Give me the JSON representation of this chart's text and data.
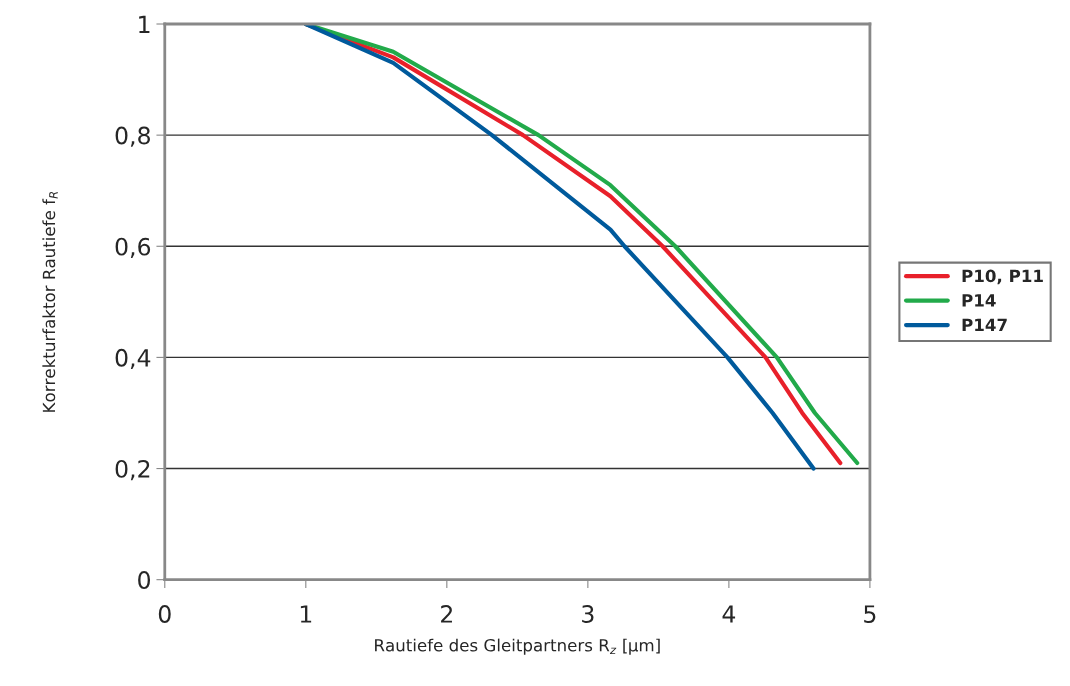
{
  "chart_data": {
    "type": "line",
    "xlabel": "Rautiefe des Gleitpartners R$_{z}$ [µm]",
    "ylabel": "Korrekturfaktor Rautiefe f$_{R}$",
    "series": [
      {
        "name": "P10, P11",
        "color": "#e8202a",
        "x": [
          1,
          1.62,
          2.54,
          3.16,
          3.53,
          4.26,
          4.52,
          4.79
        ],
        "values": [
          1,
          0.94,
          0.8,
          0.69,
          0.6,
          0.4,
          0.3,
          0.21
        ]
      },
      {
        "name": "P14",
        "color": "#22aa4a",
        "x": [
          1,
          1.62,
          2.65,
          3.16,
          3.62,
          4.34,
          4.61,
          4.91
        ],
        "values": [
          1,
          0.95,
          0.8,
          0.71,
          0.6,
          0.4,
          0.3,
          0.21
        ]
      },
      {
        "name": "P147",
        "color": "#005a9c",
        "x": [
          1,
          1.62,
          2.32,
          3.16,
          3.26,
          3.99,
          4.31,
          4.6
        ],
        "values": [
          1,
          0.93,
          0.8,
          0.63,
          0.6,
          0.4,
          0.3,
          0.2
        ]
      }
    ],
    "xlim": [
      0,
      5
    ],
    "xticks": [
      0,
      1,
      2,
      3,
      4,
      5
    ],
    "ylim": [
      0,
      1
    ],
    "yticks": [
      0,
      {
        "value": 0.2,
        "label": "0,2"
      },
      {
        "value": 0.4,
        "label": "0,4"
      },
      {
        "value": 0.6,
        "label": "0,6"
      },
      {
        "value": 0.8,
        "label": "0,8"
      },
      1
    ],
    "grid": "y",
    "legend": "right",
    "marker": "none",
    "line_style": "solid"
  }
}
